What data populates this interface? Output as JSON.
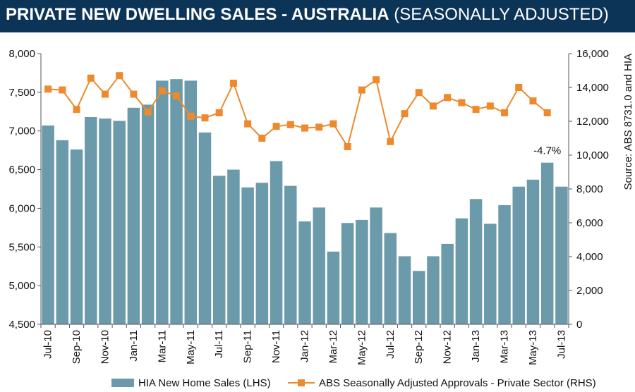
{
  "title": {
    "main": "PRIVATE NEW DWELLING SALES -  AUSTRALIA",
    "sub": " (SEASONALLY ADJUSTED)"
  },
  "source": "Source: ABS 8731.0 and HIA",
  "colors": {
    "header_bg": "#0c3457",
    "bar": "#6b9aaa",
    "line": "#ec8a2d",
    "axis": "#555555"
  },
  "chart_data": {
    "type": "bar",
    "months": [
      "Jul-10",
      "Aug-10",
      "Sep-10",
      "Oct-10",
      "Nov-10",
      "Dec-10",
      "Jan-11",
      "Feb-11",
      "Mar-11",
      "Apr-11",
      "May-11",
      "Jun-11",
      "Jul-11",
      "Aug-11",
      "Sep-11",
      "Oct-11",
      "Nov-11",
      "Dec-11",
      "Jan-12",
      "Feb-12",
      "Mar-12",
      "Apr-12",
      "May-12",
      "Jun-12",
      "Jul-12",
      "Aug-12",
      "Sep-12",
      "Oct-12",
      "Nov-12",
      "Dec-12",
      "Jan-13",
      "Feb-13",
      "Mar-13",
      "Apr-13",
      "May-13",
      "Jun-13",
      "Jul-13"
    ],
    "x_tick_labels": [
      "Jul-10",
      "Sep-10",
      "Nov-10",
      "Jan-11",
      "Mar-11",
      "May-11",
      "Jul-11",
      "Sep-11",
      "Nov-11",
      "Jan-12",
      "Mar-12",
      "May-12",
      "Jul-12",
      "Sep-12",
      "Nov-12",
      "Jan-13",
      "Mar-13",
      "May-13",
      "Jul-13"
    ],
    "y_left": {
      "min": 4500,
      "max": 8000,
      "ticks": [
        "4,500",
        "5,000",
        "5,500",
        "6,000",
        "6,500",
        "7,000",
        "7,500",
        "8,000"
      ]
    },
    "y_right": {
      "min": 0,
      "max": 16000,
      "ticks": [
        "0",
        "2,000",
        "4,000",
        "6,000",
        "8,000",
        "10,000",
        "12,000",
        "14,000",
        "16,000"
      ]
    },
    "series": [
      {
        "name": "HIA New Home Sales (LHS)",
        "type": "bar",
        "axis": "left",
        "values": [
          7070,
          6880,
          6760,
          7180,
          7160,
          7130,
          7300,
          7340,
          7650,
          7670,
          7650,
          6980,
          6420,
          6500,
          6270,
          6330,
          6610,
          6290,
          5830,
          6010,
          5440,
          5810,
          5850,
          6010,
          5680,
          5380,
          5190,
          5380,
          5540,
          5870,
          6120,
          5800,
          6040,
          6280,
          6370,
          6590,
          6280
        ]
      },
      {
        "name": "ABS Seasonally Adjusted Approvals - Private Sector (RHS)",
        "type": "line",
        "axis": "right",
        "values": [
          13900,
          13850,
          12700,
          14550,
          13600,
          14700,
          13600,
          12550,
          13800,
          13500,
          12300,
          12200,
          12500,
          14250,
          11850,
          11000,
          11700,
          11800,
          11600,
          11650,
          11850,
          10500,
          13850,
          14450,
          10800,
          12450,
          13700,
          12900,
          13400,
          13100,
          12700,
          12900,
          12500,
          14000,
          13200,
          12500,
          null
        ]
      }
    ],
    "annotations": [
      {
        "text": "-4.7%",
        "month": "Jun-13"
      }
    ],
    "legend_position": "bottom",
    "grid": false
  }
}
